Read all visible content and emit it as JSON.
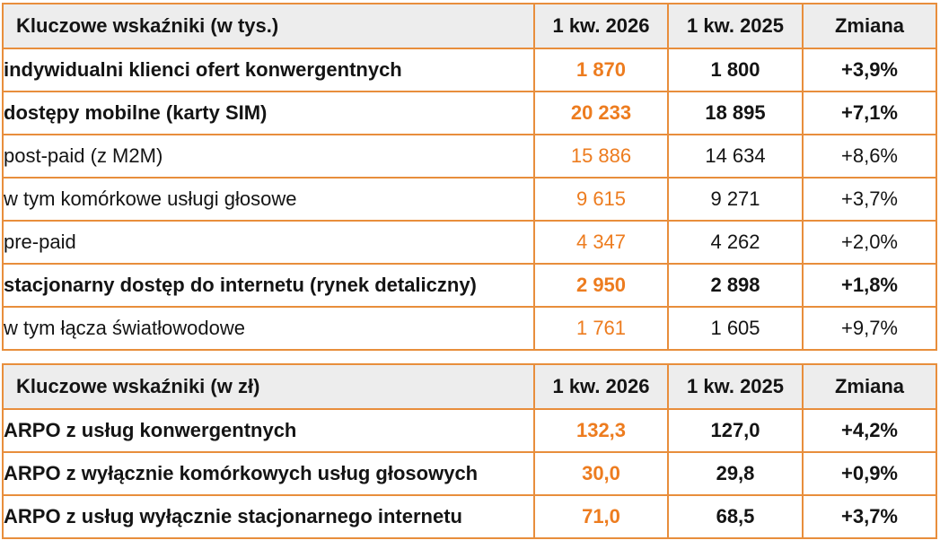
{
  "colors": {
    "accent_orange_text": "#ED7C1F",
    "table_border_orange": "#E88E3C",
    "header_row_background": "#EDEDED",
    "body_text": "#141414"
  },
  "tables": [
    {
      "name": "kpi-thousands",
      "columns": [
        "Kluczowe wskaźniki (w tys.)",
        "1 kw. 2026",
        "1 kw. 2025",
        "Zmiana"
      ],
      "rows": [
        {
          "label": "indywidualni klienci ofert konwergentnych",
          "indent": 0,
          "bold": true,
          "y2026": "1 870",
          "y2025": "1 800",
          "change": "+3,9%"
        },
        {
          "label": "dostępy mobilne (karty SIM)",
          "indent": 0,
          "bold": true,
          "y2026": "20 233",
          "y2025": "18 895",
          "change": "+7,1%"
        },
        {
          "label": "post-paid (z M2M)",
          "indent": 1,
          "bold": false,
          "y2026": "15 886",
          "y2025": "14 634",
          "change": "+8,6%"
        },
        {
          "label": "w tym komórkowe usługi głosowe",
          "indent": 2,
          "bold": false,
          "y2026": "9 615",
          "y2025": "9 271",
          "change": "+3,7%"
        },
        {
          "label": "pre-paid",
          "indent": 1,
          "bold": false,
          "y2026": "4 347",
          "y2025": "4 262",
          "change": "+2,0%"
        },
        {
          "label": "stacjonarny dostęp do internetu (rynek detaliczny)",
          "indent": 0,
          "bold": true,
          "y2026": "2 950",
          "y2025": "2 898",
          "change": "+1,8%"
        },
        {
          "label": "w tym łącza światłowodowe",
          "indent": 1,
          "bold": false,
          "y2026": "1 761",
          "y2025": "1 605",
          "change": "+9,7%"
        }
      ]
    },
    {
      "name": "kpi-zloty",
      "columns": [
        "Kluczowe wskaźniki (w zł)",
        "1 kw. 2026",
        "1 kw. 2025",
        "Zmiana"
      ],
      "rows": [
        {
          "label": "ARPO z usług konwergentnych",
          "indent": 0,
          "bold": true,
          "y2026": "132,3",
          "y2025": "127,0",
          "change": "+4,2%"
        },
        {
          "label": "ARPO z wyłącznie komórkowych usług głosowych",
          "indent": 0,
          "bold": true,
          "y2026": "30,0",
          "y2025": "29,8",
          "change": "+0,9%"
        },
        {
          "label": "ARPO z usług wyłącznie stacjonarnego internetu",
          "indent": 0,
          "bold": true,
          "y2026": "71,0",
          "y2025": "68,5",
          "change": "+3,7%"
        }
      ]
    }
  ]
}
